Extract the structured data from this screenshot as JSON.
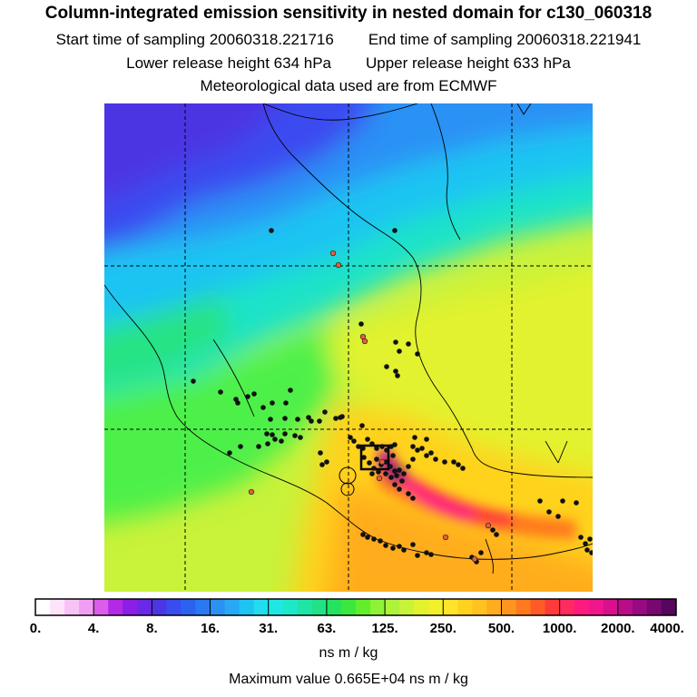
{
  "header": {
    "title": "Column-integrated emission sensitivity in nested domain for c130_060318",
    "start_label": "Start time of sampling 20060318.221716",
    "end_label": "End time of sampling 20060318.221941",
    "lower_label": "Lower release height  634 hPa",
    "upper_label": "Upper release height  633 hPa",
    "met_label": "Meteorological data used are from ECMWF"
  },
  "map": {
    "region": "Mexico nested domain",
    "grid": true,
    "colors": {
      "deep_blue": "#3e3cd6",
      "blue": "#2f8ef0",
      "cyan": "#1ee3ea",
      "green": "#4ef04a",
      "yellowgreen": "#c8f23a",
      "yellow": "#ffea2a",
      "orange": "#ffb81e",
      "red": "#ff3a3a",
      "magenta": "#ff1493",
      "purple": "#8b0a8c"
    },
    "markers": "fire-point-dots",
    "release_box": true
  },
  "colorbar": {
    "colors": [
      "#ffffff",
      "#fde4fb",
      "#f7c2f6",
      "#f09ef2",
      "#dc5ceb",
      "#b229e6",
      "#8c1ee6",
      "#6a29e6",
      "#4b36e3",
      "#3a4cf0",
      "#2c62f0",
      "#2a78f2",
      "#2a91f5",
      "#27a9f5",
      "#1ec4f2",
      "#22dcef",
      "#1fe8e4",
      "#1fe8c8",
      "#1fe6a6",
      "#1fe384",
      "#25e35c",
      "#3ae840",
      "#62ee2d",
      "#8ef235",
      "#aef23a",
      "#c9f23a",
      "#e2f22e",
      "#f2f02a",
      "#ffe42a",
      "#ffd21e",
      "#ffc21e",
      "#ffad1e",
      "#ff951e",
      "#ff7a1e",
      "#ff5a28",
      "#ff3a3a",
      "#ff2a5e",
      "#ff1a80",
      "#f0168c",
      "#d8108c",
      "#b80c88",
      "#960a82",
      "#760870",
      "#56065c"
    ],
    "tick_labels": [
      "0.",
      "4.",
      "8.",
      "16.",
      "31.",
      "63.",
      "125.",
      "250.",
      "500.",
      "1000.",
      "2000.",
      "4000."
    ],
    "units": "ns m / kg"
  },
  "max_value_label": "Maximum value  0.665E+04 ns m / kg"
}
